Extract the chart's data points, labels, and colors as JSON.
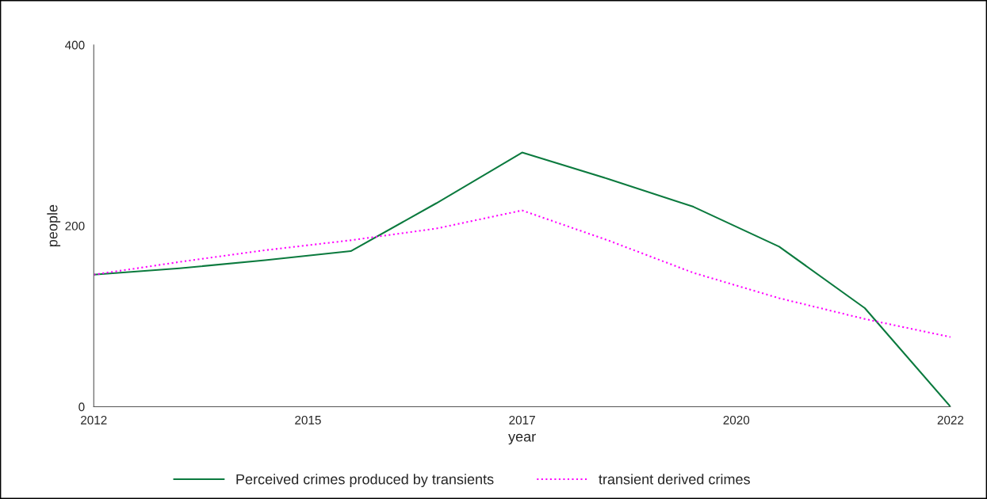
{
  "chart_data": {
    "type": "line",
    "xlabel": "year",
    "ylabel": "people",
    "x": [
      2012,
      2013,
      2014,
      2015,
      2016,
      2017,
      2018,
      2019,
      2020,
      2021,
      2022
    ],
    "series": [
      {
        "name": "Perceived crimes produced by transients",
        "color": "#0b7a3e",
        "values": [
          146,
          153,
          162,
          172,
          225,
          281,
          252,
          221,
          177,
          109,
          0
        ],
        "line_style": "solid"
      },
      {
        "name": "transient derived crimes",
        "color": "#ff00ff",
        "values": [
          146,
          160,
          173,
          184,
          197,
          217,
          184,
          148,
          120,
          97,
          77
        ],
        "line_style": "dotted"
      }
    ],
    "xlim": [
      2012,
      2022
    ],
    "xticks": [
      2012,
      {
        "value": 2014.5,
        "label": "2015"
      },
      2017,
      {
        "value": 2019.5,
        "label": "2020"
      },
      2022
    ],
    "ylim": [
      0,
      400
    ],
    "yticks": [
      0,
      200,
      400
    ],
    "grid": false,
    "legend": "bottom",
    "marker": "none"
  }
}
